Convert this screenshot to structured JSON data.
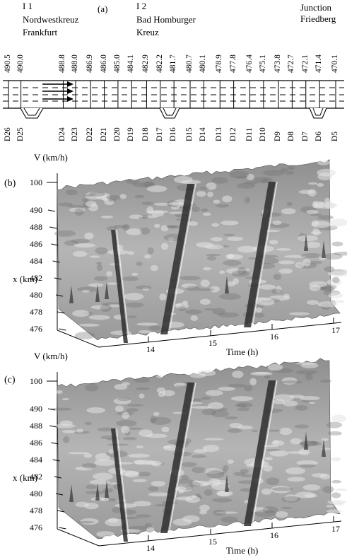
{
  "panel_a": {
    "tag": "(a)",
    "junctions": [
      {
        "id": "I 1",
        "line1": "Nordwestkreuz",
        "line2": "Frankfurt"
      },
      {
        "id": "I 2",
        "line1": "Bad Homburger",
        "line2": "Kreuz"
      },
      {
        "id": "",
        "line1": "Junction",
        "line2": "Friedberg"
      }
    ],
    "km_marks": [
      "490.5",
      "490.0",
      "488.8",
      "488.0",
      "486.9",
      "486.0",
      "485.0",
      "484.1",
      "482.9",
      "482.2",
      "481.7",
      "480.7",
      "480.1",
      "478.9",
      "477.8",
      "476.4",
      "475.1",
      "473.8",
      "472.7",
      "472.1",
      "471.4",
      "470.1"
    ],
    "detectors": [
      "D26",
      "D25",
      "D24",
      "D23",
      "D22",
      "D21",
      "D20",
      "D19",
      "D18",
      "D17",
      "D16",
      "D15",
      "D14",
      "D13",
      "D12",
      "D11",
      "D10",
      "D9",
      "D8",
      "D7",
      "D6",
      "D5"
    ]
  },
  "panel_b": {
    "tag": "(b)",
    "zlabel": "V (km/h)",
    "ylabel": "x (km)",
    "xlabel": "Time (h)",
    "z_ticks": [
      "100"
    ],
    "y_ticks": [
      "490",
      "488",
      "486",
      "484",
      "482",
      "480",
      "478",
      "476"
    ],
    "x_ticks": [
      "14",
      "15",
      "16",
      "17"
    ]
  },
  "panel_c": {
    "tag": "(c)",
    "zlabel": "V (km/h)",
    "ylabel": "x (km)",
    "xlabel": "Time (h)",
    "z_ticks": [
      "100"
    ],
    "y_ticks": [
      "490",
      "488",
      "486",
      "484",
      "482",
      "480",
      "478",
      "476"
    ],
    "x_ticks": [
      "14",
      "15",
      "16",
      "17"
    ]
  }
}
